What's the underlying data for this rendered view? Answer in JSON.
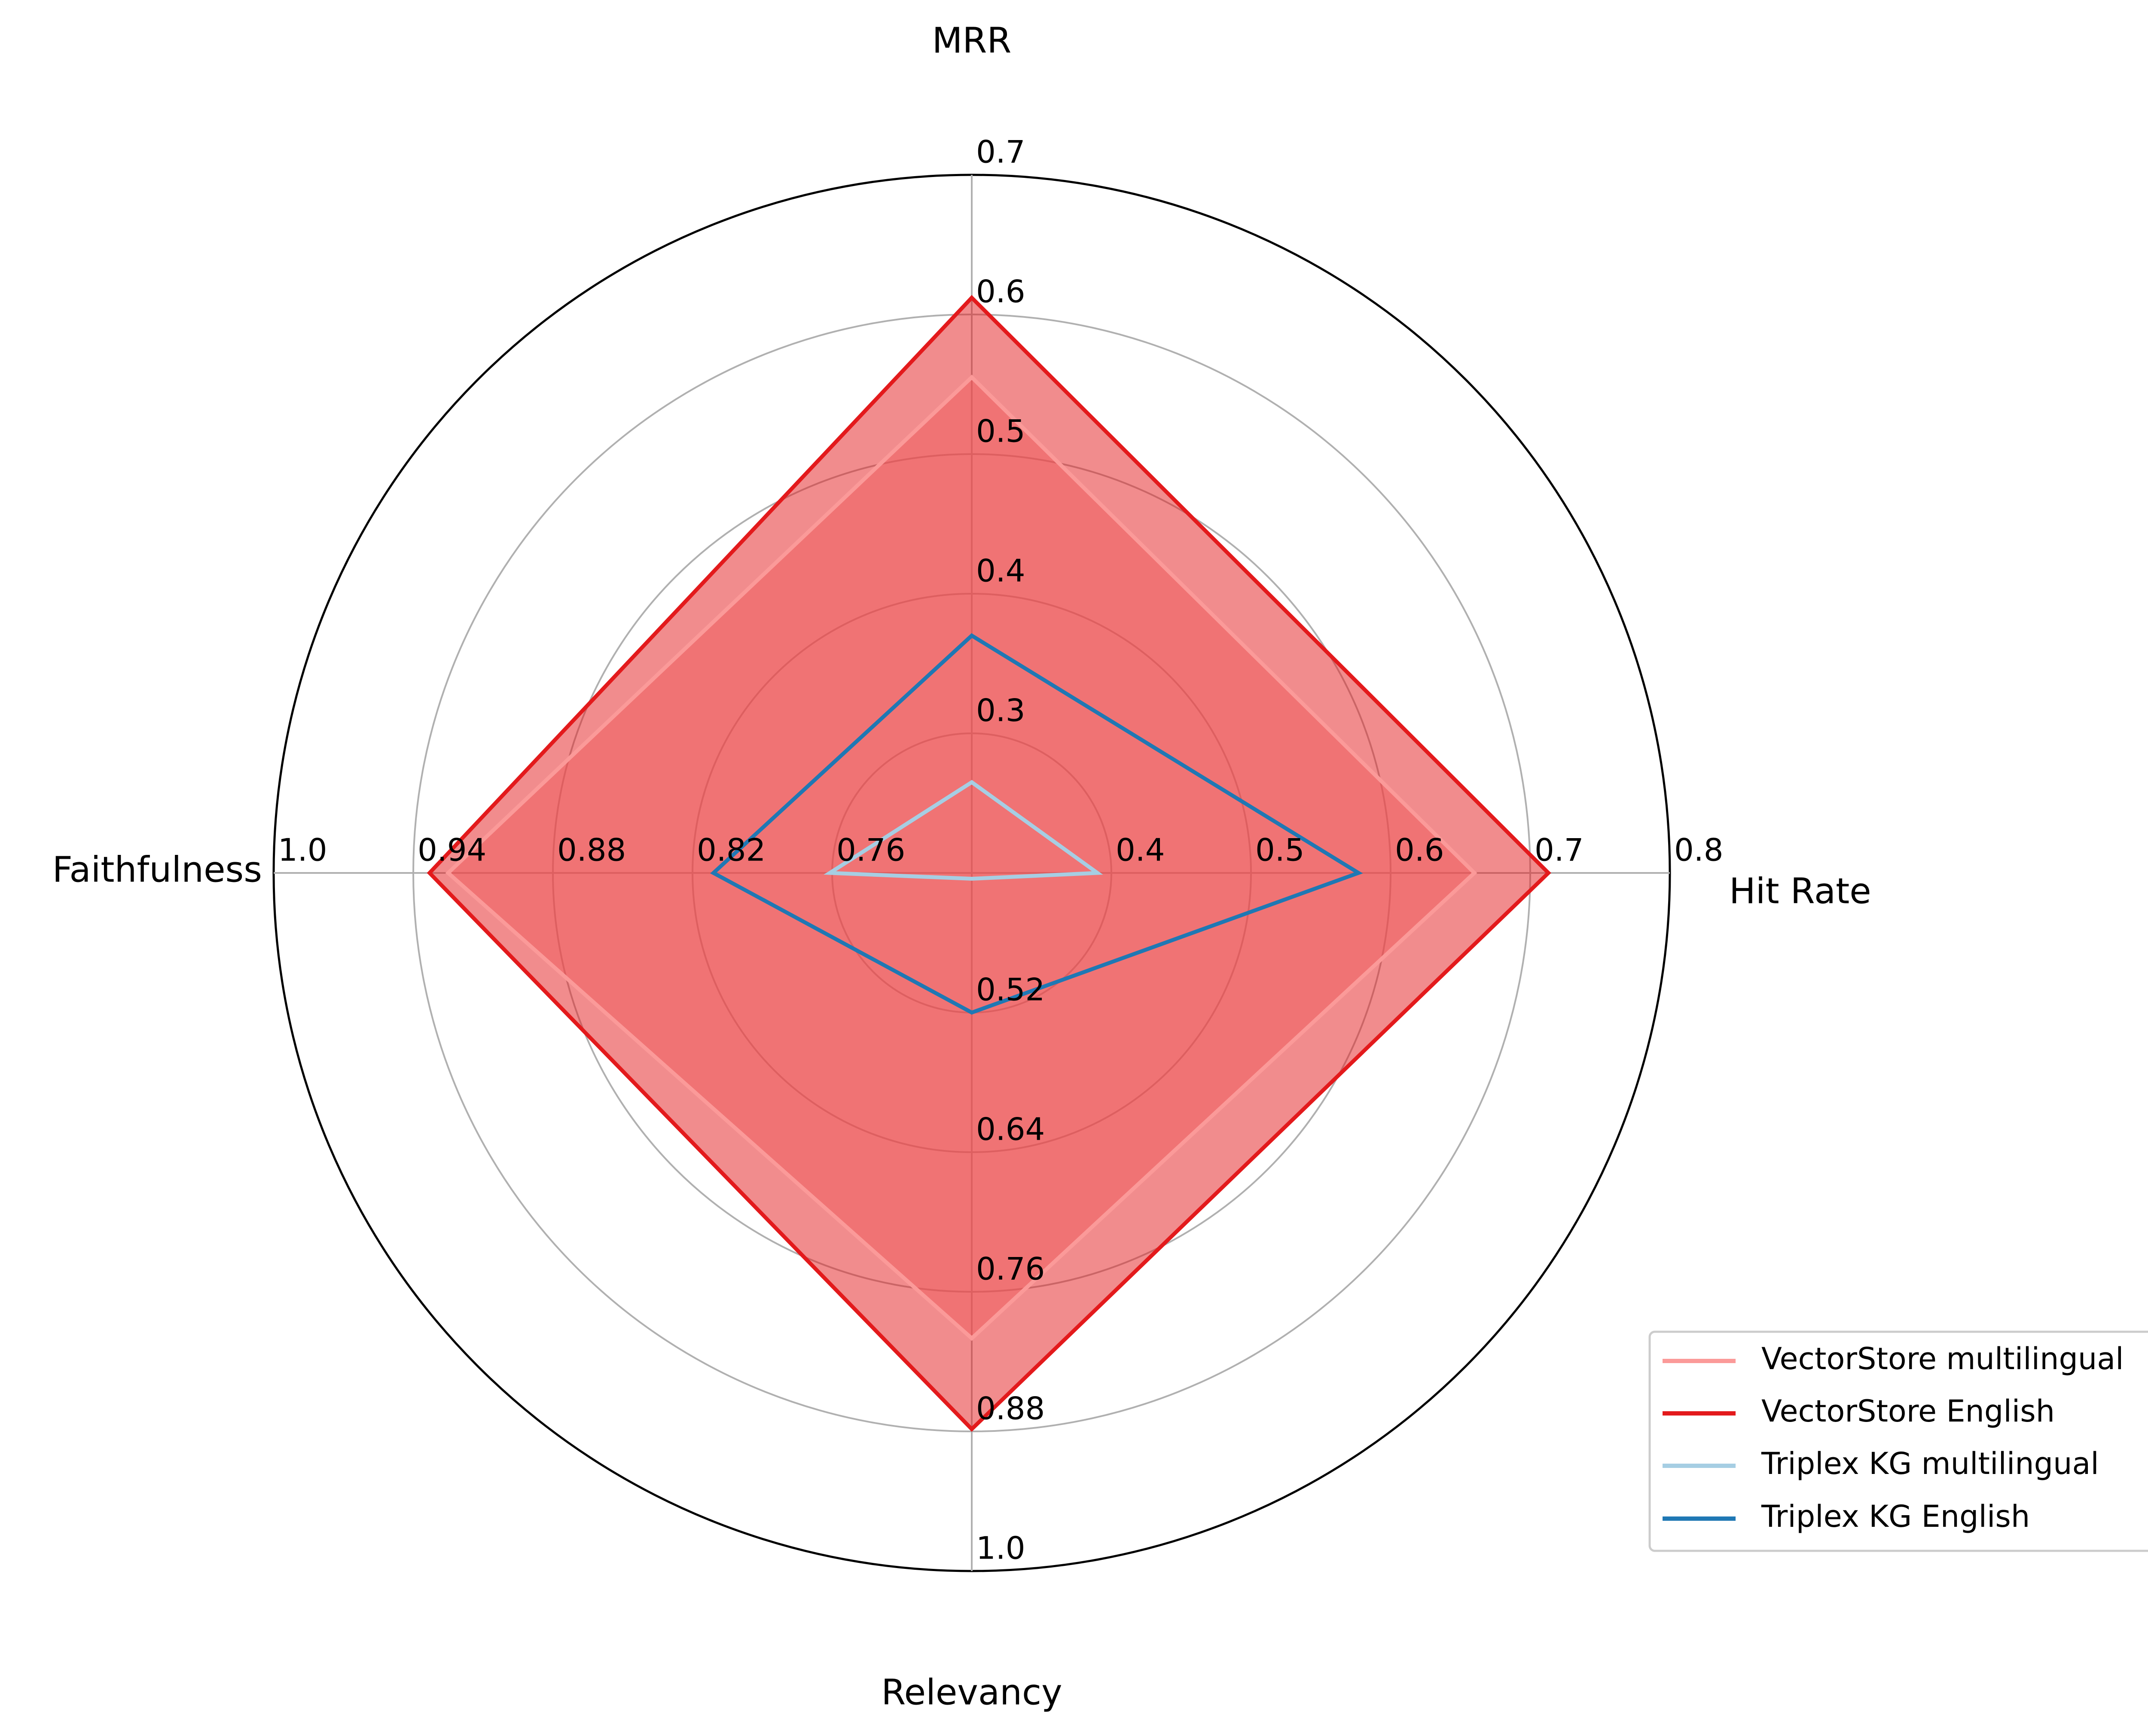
{
  "chart_data": {
    "type": "radar",
    "axes": [
      {
        "label": "MRR",
        "ticks": [
          "0.3",
          "0.4",
          "0.5",
          "0.6",
          "0.7"
        ],
        "range": [
          0.2,
          0.7
        ]
      },
      {
        "label": "Hit Rate",
        "ticks": [
          "0.4",
          "0.5",
          "0.6",
          "0.7",
          "0.8"
        ],
        "range": [
          0.3,
          0.8
        ]
      },
      {
        "label": "Relevancy",
        "ticks": [
          "0.52",
          "0.64",
          "0.76",
          "0.88",
          "1.0"
        ],
        "range": [
          0.4,
          1.0
        ]
      },
      {
        "label": "Faithfulness",
        "ticks": [
          "0.76",
          "0.82",
          "0.88",
          "0.94",
          "1.0"
        ],
        "range": [
          0.7,
          1.0
        ]
      }
    ],
    "series": [
      {
        "name": "VectorStore multilingual",
        "color": "#fb9a99",
        "values": [
          0.555,
          0.66,
          0.8,
          0.925
        ],
        "filled": true
      },
      {
        "name": "VectorStore English",
        "color": "#e31a1c",
        "values": [
          0.612,
          0.713,
          0.878,
          0.933
        ],
        "filled": true
      },
      {
        "name": "Triplex KG multilingual",
        "color": "#a6cee3",
        "values": [
          0.265,
          0.39,
          0.405,
          0.761
        ],
        "filled": false
      },
      {
        "name": "Triplex KG English",
        "color": "#1f78b4",
        "values": [
          0.37,
          0.577,
          0.52,
          0.811
        ],
        "filled": false
      }
    ],
    "grid": true,
    "legend_position": "bottom-right"
  }
}
